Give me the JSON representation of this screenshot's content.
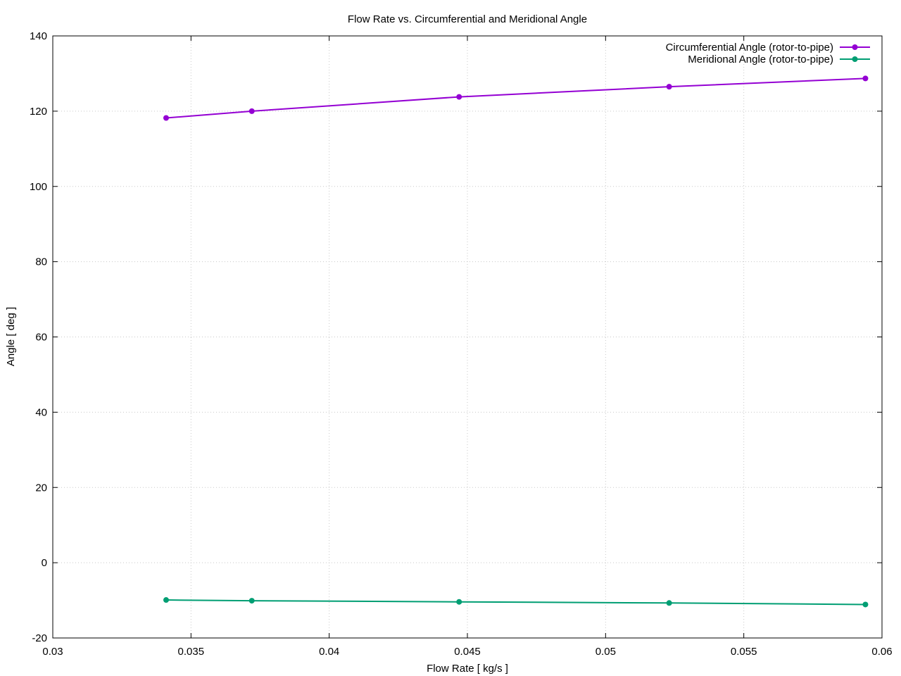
{
  "chart_data": {
    "type": "line",
    "title": "Flow Rate vs. Circumferential and Meridional Angle",
    "xlabel": "Flow Rate [ kg/s ]",
    "ylabel": "Angle [ deg ]",
    "xlim": [
      0.03,
      0.06
    ],
    "ylim": [
      -20,
      140
    ],
    "x_ticks": [
      0.03,
      0.035,
      0.04,
      0.045,
      0.05,
      0.055,
      0.06
    ],
    "x_tick_labels": [
      "0.03",
      "0.035",
      "0.04",
      "0.045",
      "0.05",
      "0.055",
      "0.06"
    ],
    "y_ticks": [
      -20,
      0,
      20,
      40,
      60,
      80,
      100,
      120,
      140
    ],
    "y_tick_labels": [
      "-20",
      "0",
      "20",
      "40",
      "60",
      "80",
      "100",
      "120",
      "140"
    ],
    "grid": true,
    "legend_position": "top-right",
    "series": [
      {
        "name": "Circumferential Angle (rotor-to-pipe)",
        "color": "#9400d3",
        "marker": "circle",
        "x": [
          0.0341,
          0.0372,
          0.0447,
          0.0523,
          0.0594
        ],
        "y": [
          118.2,
          120.0,
          123.8,
          126.5,
          128.7
        ]
      },
      {
        "name": "Meridional Angle (rotor-to-pipe)",
        "color": "#009e73",
        "marker": "circle",
        "x": [
          0.0341,
          0.0372,
          0.0447,
          0.0523,
          0.0594
        ],
        "y": [
          -9.9,
          -10.1,
          -10.4,
          -10.7,
          -11.1
        ]
      }
    ]
  }
}
